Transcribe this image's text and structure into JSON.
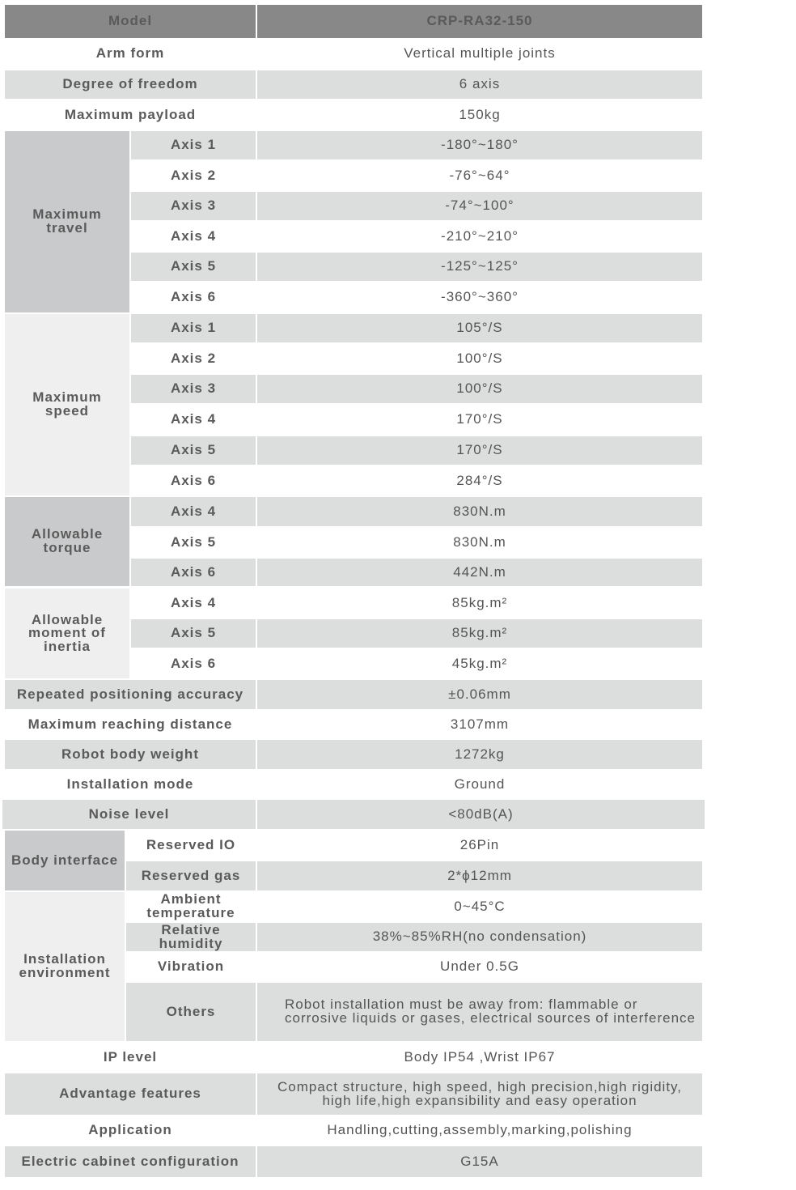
{
  "header": {
    "label": "Model",
    "value": "CRP-RA32-150"
  },
  "rows": [
    {
      "label": "Arm form",
      "value": "Vertical multiple joints"
    },
    {
      "label": "Degree of freedom",
      "value": "6 axis"
    },
    {
      "label": "Maximum payload",
      "value": "150kg"
    },
    {
      "group": "Maximum travel",
      "tone": "dark",
      "items": [
        {
          "label": "Axis 1",
          "value": "-180°~180°"
        },
        {
          "label": "Axis 2",
          "value": "-76°~64°"
        },
        {
          "label": "Axis 3",
          "value": "-74°~100°"
        },
        {
          "label": "Axis 4",
          "value": "-210°~210°"
        },
        {
          "label": "Axis 5",
          "value": "-125°~125°"
        },
        {
          "label": "Axis 6",
          "value": "-360°~360°"
        }
      ]
    },
    {
      "group": "Maximum speed",
      "tone": "light",
      "items": [
        {
          "label": "Axis 1",
          "value": "105°/S"
        },
        {
          "label": "Axis 2",
          "value": "100°/S"
        },
        {
          "label": "Axis 3",
          "value": "100°/S"
        },
        {
          "label": "Axis 4",
          "value": "170°/S"
        },
        {
          "label": "Axis 5",
          "value": "170°/S"
        },
        {
          "label": "Axis 6",
          "value": "284°/S"
        }
      ]
    },
    {
      "group": "Allowable torque",
      "tone": "dark",
      "items": [
        {
          "label": "Axis 4",
          "value": "830N.m"
        },
        {
          "label": "Axis 5",
          "value": "830N.m"
        },
        {
          "label": "Axis 6",
          "value": "442N.m"
        }
      ]
    },
    {
      "group": "Allowable moment of inertia",
      "tone": "light",
      "items": [
        {
          "label": "Axis 4",
          "value": "85kg.m²"
        },
        {
          "label": "Axis 5",
          "value": "85kg.m²"
        },
        {
          "label": "Axis 6",
          "value": "45kg.m²"
        }
      ]
    },
    {
      "label": "Repeated positioning accuracy",
      "value": "±0.06mm"
    },
    {
      "label": "Maximum reaching distance",
      "value": "3107mm"
    },
    {
      "label": "Robot body weight",
      "value": "1272kg"
    },
    {
      "label": "Installation mode",
      "value": "Ground"
    },
    {
      "label": "Noise level",
      "value": "<80dB(A)"
    },
    {
      "group": "Body interface",
      "tone": "dark",
      "items": [
        {
          "label": "Reserved IO",
          "value": "26Pin"
        },
        {
          "label": "Reserved gas",
          "value": "2*ϕ12mm"
        }
      ]
    },
    {
      "group": "Installation environment",
      "tone": "light",
      "items": [
        {
          "label": "Ambient temperature",
          "value": "0~45°C"
        },
        {
          "label": "Relative humidity",
          "value": "38%~85%RH(no condensation)"
        },
        {
          "label": "Vibration",
          "value": "Under 0.5G"
        },
        {
          "label": "Others",
          "value": "Robot installation must be away from: flammable or corrosive liquids or gases, electrical sources of interference"
        }
      ]
    },
    {
      "label": "IP level",
      "value": "Body IP54 ,Wrist IP67"
    },
    {
      "label": "Advantage features",
      "value": "Compact structure, high speed, high precision,high rigidity, high life,high expansibility and easy operation"
    },
    {
      "label": "Application",
      "value": "Handling,cutting,assembly,marking,polishing"
    },
    {
      "label": "Electric cabinet configuration",
      "value": "G15A"
    }
  ]
}
